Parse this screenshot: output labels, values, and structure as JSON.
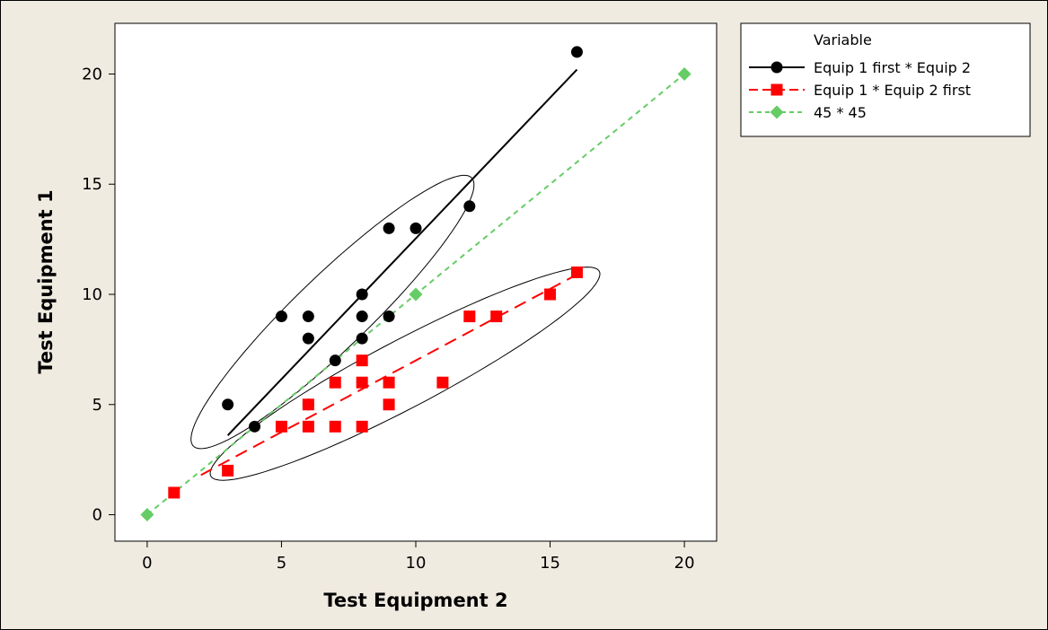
{
  "chart_data": {
    "type": "scatter",
    "xlabel": "Test Equipment 2",
    "ylabel": "Test Equipment 1",
    "xlim": [
      -1.2,
      21.2
    ],
    "ylim": [
      -1.2,
      22.3
    ],
    "xticks": [
      0,
      5,
      10,
      15,
      20
    ],
    "yticks": [
      0,
      5,
      10,
      15,
      20
    ],
    "grid": false,
    "legend": {
      "title": "Variable",
      "placement": "right"
    },
    "series": [
      {
        "name": "Equip 1 first * Equip 2",
        "color": "#000000",
        "marker": "circle",
        "line": "solid",
        "points": [
          [
            3,
            5
          ],
          [
            4,
            4
          ],
          [
            5,
            9
          ],
          [
            6,
            9
          ],
          [
            6,
            8
          ],
          [
            6,
            5
          ],
          [
            7,
            7
          ],
          [
            8,
            10
          ],
          [
            8,
            9
          ],
          [
            8,
            8
          ],
          [
            9,
            13
          ],
          [
            9,
            9
          ],
          [
            10,
            13
          ],
          [
            12,
            14
          ],
          [
            16,
            21
          ]
        ],
        "fit": [
          [
            3,
            3.6
          ],
          [
            16,
            20.2
          ]
        ]
      },
      {
        "name": "Equip 1 * Equip 2 first",
        "color": "#ff0000",
        "marker": "square",
        "line": "dashed",
        "points": [
          [
            1,
            1
          ],
          [
            3,
            2
          ],
          [
            5,
            4
          ],
          [
            6,
            4
          ],
          [
            6,
            5
          ],
          [
            7,
            6
          ],
          [
            7,
            4
          ],
          [
            8,
            7
          ],
          [
            8,
            6
          ],
          [
            8,
            4
          ],
          [
            9,
            6
          ],
          [
            9,
            5
          ],
          [
            11,
            6
          ],
          [
            12,
            9
          ],
          [
            13,
            9
          ],
          [
            15,
            10
          ],
          [
            16,
            11
          ]
        ],
        "fit": [
          [
            2,
            1.8
          ],
          [
            16,
            10.9
          ]
        ]
      },
      {
        "name": "45 * 45",
        "color": "#66cc66",
        "marker": "diamond",
        "line": "dashed",
        "points": [
          [
            0,
            0
          ],
          [
            10,
            10
          ],
          [
            20,
            20
          ]
        ]
      }
    ],
    "ellipses": [
      {
        "series": "Equip 1 first * Equip 2",
        "center": [
          6.9,
          9.2
        ],
        "semi_major": 8.0,
        "semi_minor": 1.5,
        "angle_deg": 50
      },
      {
        "series": "Equip 1 * Equip 2 first",
        "center": [
          9.6,
          6.4
        ],
        "semi_major": 8.6,
        "semi_minor": 1.45,
        "angle_deg": 33
      }
    ]
  }
}
